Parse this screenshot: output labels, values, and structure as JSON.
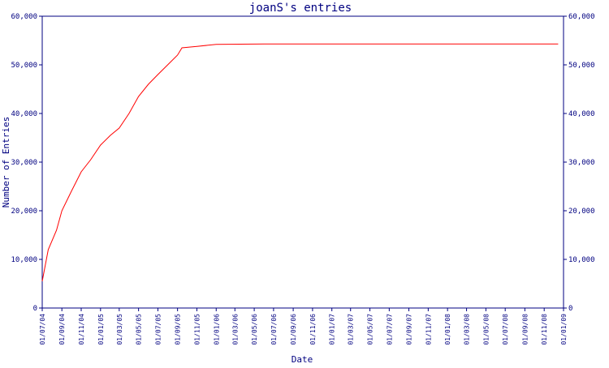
{
  "colors": {
    "axis": "#000080",
    "text": "#000080",
    "line": "#ff0000",
    "background": "#ffffff"
  },
  "chart_data": {
    "type": "line",
    "title": "joanS's entries",
    "xlabel": "Date",
    "ylabel": "Number of Entries",
    "ylim": [
      0,
      60000
    ],
    "xlim": [
      "2004-07-01",
      "2009-01-01"
    ],
    "grid": false,
    "y_ticks": [
      0,
      10000,
      20000,
      30000,
      40000,
      50000,
      60000
    ],
    "y_tick_labels": [
      "0",
      "10,000",
      "20,000",
      "30,000",
      "40,000",
      "50,000",
      "60,000"
    ],
    "x_tick_labels": [
      "01/07/04",
      "01/09/04",
      "01/11/04",
      "01/01/05",
      "01/03/05",
      "01/05/05",
      "01/07/05",
      "01/09/05",
      "01/11/05",
      "01/01/06",
      "01/03/06",
      "01/05/06",
      "01/07/06",
      "01/09/06",
      "01/11/06",
      "01/01/07",
      "01/03/07",
      "01/05/07",
      "01/07/07",
      "01/09/07",
      "01/11/07",
      "01/01/08",
      "01/03/08",
      "01/05/08",
      "01/07/08",
      "01/09/08",
      "01/11/08",
      "01/01/09"
    ],
    "series": [
      {
        "color": "#ff0000",
        "points": [
          {
            "x": "2004-07-01",
            "y": 5500
          },
          {
            "x": "2004-07-20",
            "y": 12000
          },
          {
            "x": "2004-08-15",
            "y": 16000
          },
          {
            "x": "2004-09-01",
            "y": 20000
          },
          {
            "x": "2004-10-01",
            "y": 24000
          },
          {
            "x": "2004-11-01",
            "y": 28000
          },
          {
            "x": "2004-12-01",
            "y": 30500
          },
          {
            "x": "2005-01-01",
            "y": 33500
          },
          {
            "x": "2005-02-01",
            "y": 35500
          },
          {
            "x": "2005-03-01",
            "y": 37000
          },
          {
            "x": "2005-04-01",
            "y": 40000
          },
          {
            "x": "2005-05-01",
            "y": 43500
          },
          {
            "x": "2005-06-01",
            "y": 46000
          },
          {
            "x": "2005-07-01",
            "y": 48000
          },
          {
            "x": "2005-08-01",
            "y": 50000
          },
          {
            "x": "2005-09-01",
            "y": 52000
          },
          {
            "x": "2005-09-15",
            "y": 53500
          },
          {
            "x": "2005-11-01",
            "y": 53800
          },
          {
            "x": "2006-01-01",
            "y": 54200
          },
          {
            "x": "2006-06-01",
            "y": 54300
          },
          {
            "x": "2007-01-01",
            "y": 54300
          },
          {
            "x": "2008-01-01",
            "y": 54300
          },
          {
            "x": "2008-12-15",
            "y": 54300
          }
        ]
      }
    ]
  }
}
